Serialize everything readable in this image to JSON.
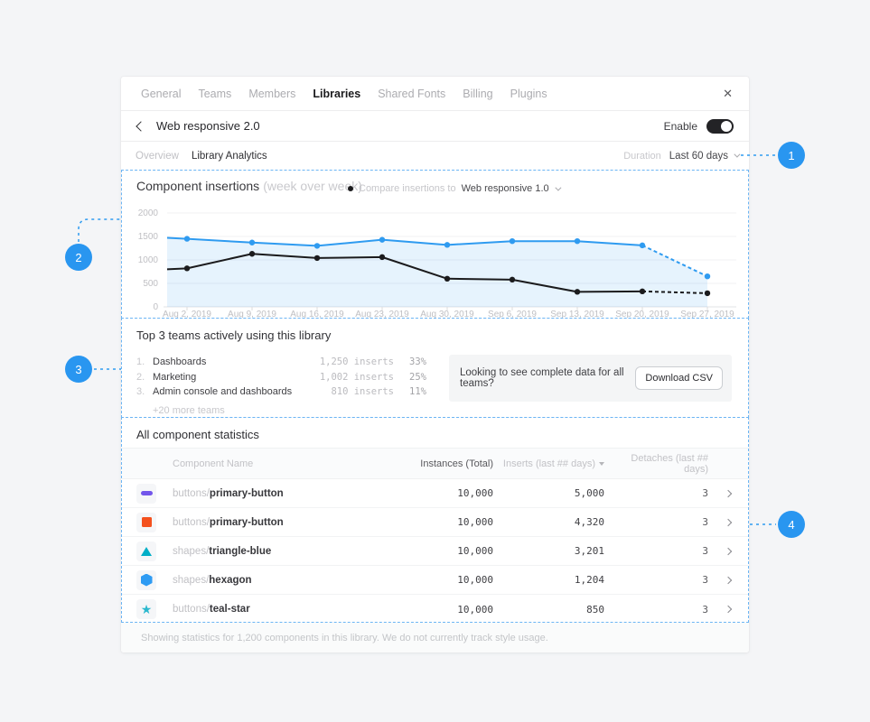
{
  "ui_colors": {
    "accent_blue": "#2996F0",
    "dashed_border": "#6CB5F4",
    "card_bg": "#FFFFFF",
    "page_bg": "#F4F5F7"
  },
  "nav": {
    "items": [
      {
        "label": "General"
      },
      {
        "label": "Teams"
      },
      {
        "label": "Members"
      },
      {
        "label": "Libraries",
        "active": true
      },
      {
        "label": "Shared Fonts"
      },
      {
        "label": "Billing"
      },
      {
        "label": "Plugins"
      }
    ],
    "close_glyph": "✕"
  },
  "header": {
    "title": "Web responsive 2.0",
    "enable_label": "Enable",
    "toggle_state": "on"
  },
  "tabs": {
    "items": [
      {
        "label": "Overview"
      },
      {
        "label": "Library Analytics",
        "active": true
      }
    ],
    "duration_label": "Duration",
    "duration_value": "Last 60 days"
  },
  "chart": {
    "title": "Component insertions",
    "subtitle": "(week over week)",
    "legend_label": "Compare insertions to",
    "legend_value": "Web responsive 1.0"
  },
  "chart_data": {
    "type": "line",
    "title": "Component insertions (week over week)",
    "categories": [
      "Aug 2, 2019",
      "Aug 9, 2019",
      "Aug 16, 2019",
      "Aug 23, 2019",
      "Aug 30, 2019",
      "Sep 6, 2019",
      "Sep 13, 2019",
      "Sep 20, 2019",
      "Sep 27, 2019"
    ],
    "y_ticks": [
      0,
      500,
      1000,
      1500,
      2000
    ],
    "ylim": [
      0,
      2000
    ],
    "grid": "horizontal",
    "legend_position": "top",
    "series": [
      {
        "name": "Web responsive 2.0 (current library)",
        "color": "#2F9BF0",
        "area_fill": "rgba(47,155,240,0.12)",
        "left_edge_value": 1470,
        "values": [
          1450,
          1370,
          1300,
          1430,
          1320,
          1400,
          1400,
          1310,
          650
        ],
        "dashed_from_index": 7
      },
      {
        "name": "Web responsive 1.0 (comparison)",
        "color": "#1B1B1D",
        "left_edge_value": 800,
        "values": [
          820,
          1130,
          1040,
          1060,
          600,
          580,
          320,
          330,
          290
        ],
        "dashed_from_index": 7
      }
    ]
  },
  "teams": {
    "title": "Top 3 teams actively using this library",
    "rows": [
      {
        "rank": "1.",
        "name": "Dashboards",
        "inserts": "1,250 inserts",
        "share": "33%"
      },
      {
        "rank": "2.",
        "name": "Marketing",
        "inserts": "1,002 inserts",
        "share": "25%"
      },
      {
        "rank": "3.",
        "name": "Admin console and dashboards",
        "inserts": "810 inserts",
        "share": "11%"
      }
    ],
    "more_label": "+20 more teams",
    "cta_text": "Looking to see complete data for all teams?",
    "cta_button": "Download CSV"
  },
  "table": {
    "title": "All component statistics",
    "columns": {
      "name": "Component Name",
      "instances": "Instances (Total)",
      "inserts": "Inserts (last ## days)",
      "detaches": "Detaches (last ## days)"
    },
    "sorted_by": "inserts",
    "rows": [
      {
        "icon": "purple-pill",
        "icon_color": "#7356EB",
        "prefix": "buttons/",
        "name": "primary-button",
        "instances": "10,000",
        "inserts": "5,000",
        "detaches": "3"
      },
      {
        "icon": "orange-square",
        "icon_color": "#F4511E",
        "prefix": "buttons/",
        "name": "primary-button",
        "instances": "10,000",
        "inserts": "4,320",
        "detaches": "3"
      },
      {
        "icon": "teal-triangle",
        "icon_color": "#00AEC7",
        "prefix": "shapes/",
        "name": "triangle-blue",
        "instances": "10,000",
        "inserts": "3,201",
        "detaches": "3"
      },
      {
        "icon": "blue-hexagon",
        "icon_color": "#2E9BF3",
        "prefix": "shapes/",
        "name": "hexagon",
        "instances": "10,000",
        "inserts": "1,204",
        "detaches": "3"
      },
      {
        "icon": "teal-star",
        "icon_color": "#2BB8CE",
        "prefix": "buttons/",
        "name": "teal-star",
        "instances": "10,000",
        "inserts": "850",
        "detaches": "3"
      }
    ]
  },
  "footer": {
    "text": "Showing statistics for 1,200 components in this library. We do not currently track style usage."
  },
  "callouts": [
    {
      "label": "1"
    },
    {
      "label": "2"
    },
    {
      "label": "3"
    },
    {
      "label": "4"
    }
  ]
}
